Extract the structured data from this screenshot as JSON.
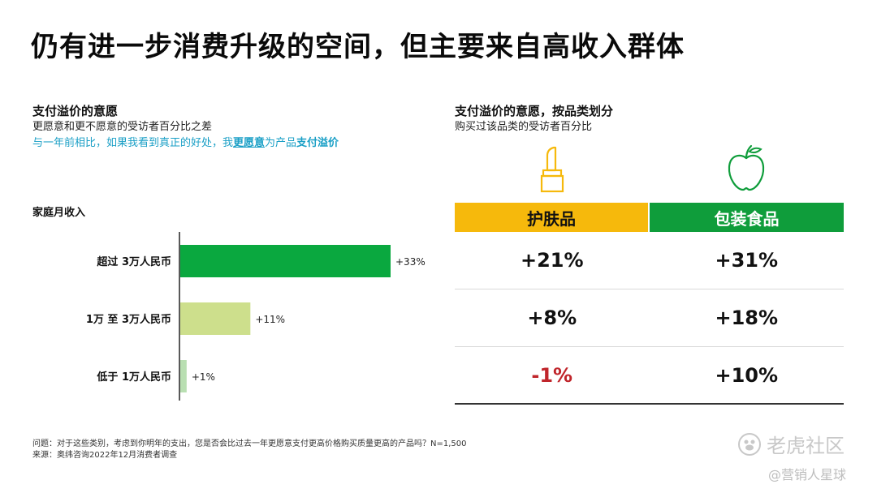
{
  "title": "仍有进一步消费升级的空间，但主要来自高收入群体",
  "left": {
    "heading": "支付溢价的意愿",
    "subheading": "更愿意和更不愿意的受访者百分比之差",
    "note_prefix": "与一年前相比，如果我看到真正的好处，我",
    "note_emph": "更愿意",
    "note_mid": "为产品",
    "note_bold": "支付溢价",
    "group_label": "家庭月收入"
  },
  "right": {
    "heading": "支付溢价的意愿，按品类划分",
    "subheading": "购买过该品类的受访者百分比",
    "col1": "护肤品",
    "col2": "包装食品",
    "rows": [
      {
        "c1": "+21%",
        "c2": "+31%"
      },
      {
        "c1": "+8%",
        "c2": "+18%"
      },
      {
        "c1": "-1%",
        "c2": "+10%"
      }
    ]
  },
  "footnote": {
    "question": "问题：对于这些类别，考虑到你明年的支出，您是否会比过去一年更愿意支付更高价格购买质量更高的产品吗？N=1,500",
    "source": "来源：奥纬咨询2022年12月消费者调查"
  },
  "watermark": {
    "brand": "老虎社区",
    "handle": "@营销人星球"
  },
  "colors": {
    "bar_high": "#0aa83f",
    "bar_mid": "#cddf8c",
    "bar_low": "#b9dfb2",
    "skincare": "#f6b90c",
    "food": "#0f9d3b",
    "negative": "#c0252b",
    "note_blue": "#1a9fc6"
  },
  "chart_data": [
    {
      "type": "bar",
      "orientation": "horizontal",
      "categories": [
        "超过 3万人民币",
        "1万 至 3万人民币",
        "低于 1万人民币"
      ],
      "values": [
        33,
        11,
        1
      ],
      "data_labels": [
        "+33%",
        "+11%",
        "+1%"
      ],
      "xlim": [
        0,
        33
      ],
      "xlabel": "",
      "ylabel": "家庭月收入"
    },
    {
      "type": "table",
      "columns": [
        "护肤品",
        "包装食品"
      ],
      "rows": [
        [
          "+21%",
          "+31%"
        ],
        [
          "+8%",
          "+18%"
        ],
        [
          "-1%",
          "+10%"
        ]
      ]
    }
  ]
}
